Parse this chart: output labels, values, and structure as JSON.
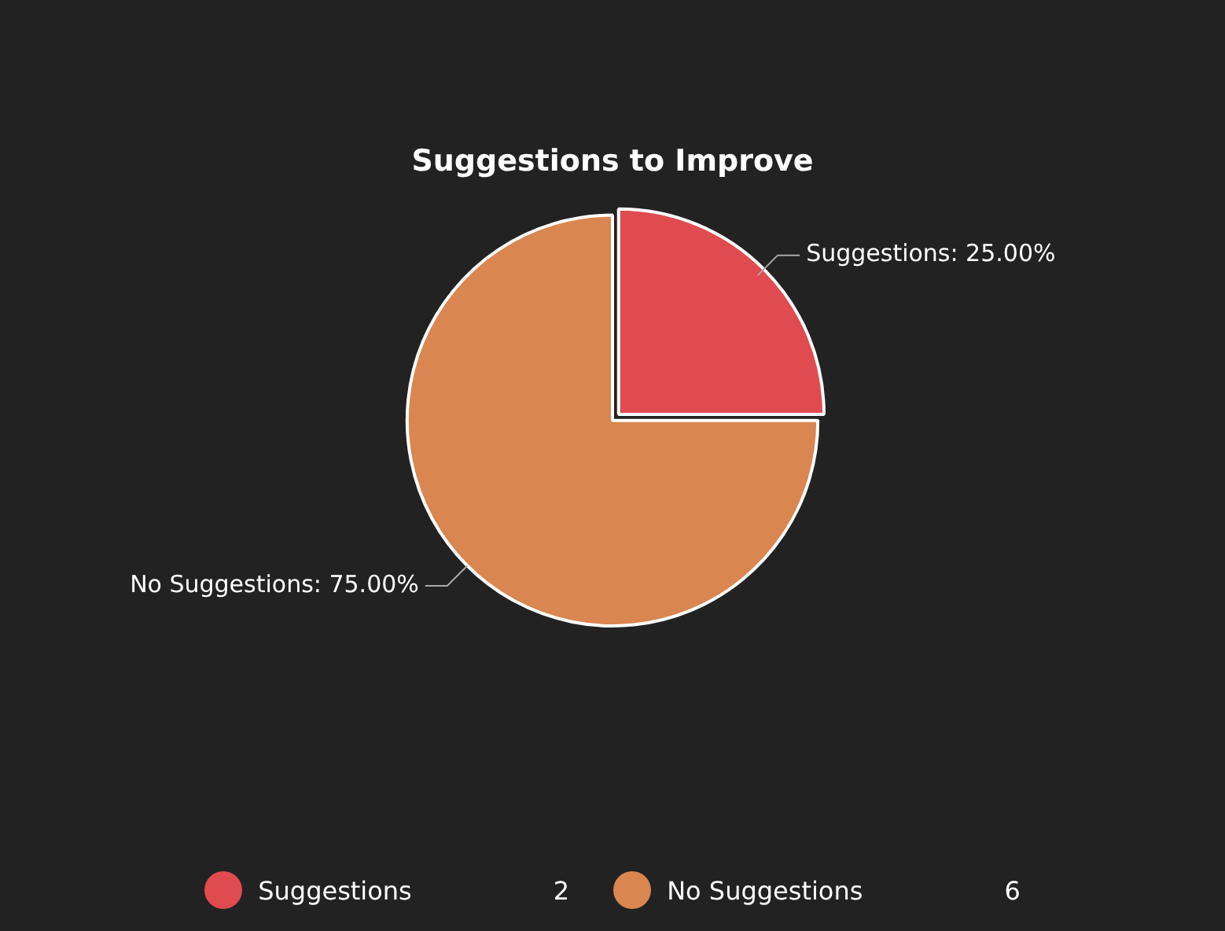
{
  "chart_data": {
    "type": "pie",
    "title": "Suggestions to Improve",
    "categories": [
      "Suggestions",
      "No Suggestions"
    ],
    "values": [
      25,
      75
    ],
    "value_labels": [
      "Suggestions: 25.00%",
      "No Suggestions: 75.00%"
    ],
    "colors": [
      "#e04b4f",
      "#d98650"
    ],
    "legend": "bottom",
    "annotations": [
      "2",
      "6"
    ]
  }
}
